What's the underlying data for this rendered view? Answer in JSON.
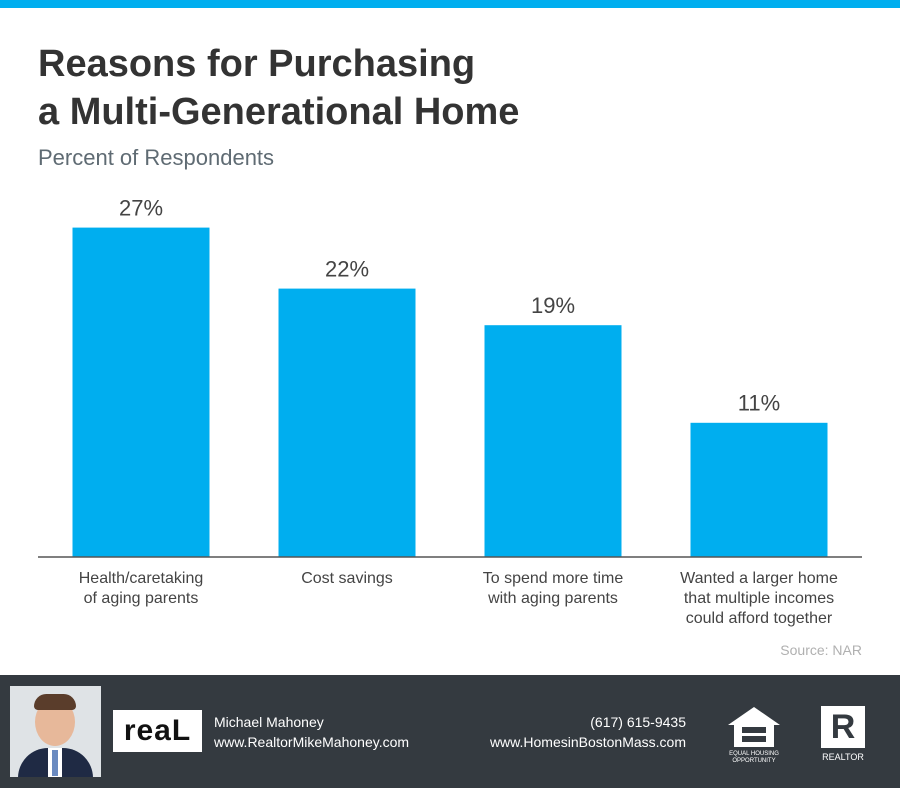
{
  "chart_data": {
    "type": "bar",
    "title": [
      "Reasons for Purchasing",
      "a Multi-Generational Home"
    ],
    "subtitle": "Percent of Respondents",
    "categories": [
      "Health/caretaking\nof aging parents",
      "Cost savings",
      "To spend more time\nwith aging parents",
      "Wanted a larger home\nthat multiple incomes\ncould afford together"
    ],
    "values": [
      27,
      22,
      19,
      11
    ],
    "value_labels": [
      "27%",
      "22%",
      "19%",
      "11%"
    ],
    "color": "#00aeef",
    "ylim": [
      0,
      30
    ],
    "source": "Source: NAR"
  },
  "footer": {
    "logo": "reaL",
    "name": "Michael Mahoney",
    "website": "www.RealtorMikeMahoney.com",
    "phone": "(617) 615-9435",
    "website2": "www.HomesinBostonMass.com",
    "equal_housing": "EQUAL HOUSING OPPORTUNITY",
    "realtor": "REALTOR"
  }
}
